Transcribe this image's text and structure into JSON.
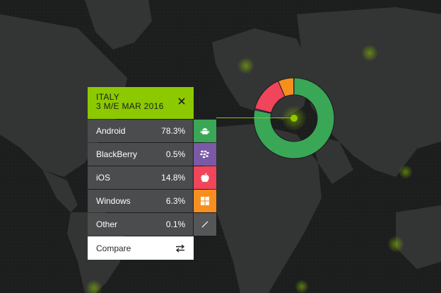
{
  "panel": {
    "country": "ITALY",
    "period": "3 M/E MAR 2016",
    "close_icon": "close-icon",
    "accent_color": "#8cc900"
  },
  "platforms": [
    {
      "name": "Android",
      "share": "78.3%",
      "value": 78.3,
      "icon": "android-icon",
      "color": "#3aa757"
    },
    {
      "name": "BlackBerry",
      "share": "0.5%",
      "value": 0.5,
      "icon": "blackberry-icon",
      "color": "#7a5aa6"
    },
    {
      "name": "iOS",
      "share": "14.8%",
      "value": 14.8,
      "icon": "apple-icon",
      "color": "#f0455a"
    },
    {
      "name": "Windows",
      "share": "6.3%",
      "value": 6.3,
      "icon": "windows-icon",
      "color": "#f78f1e"
    },
    {
      "name": "Other",
      "share": "0.1%",
      "value": 0.1,
      "icon": "other-icon",
      "color": "#555657"
    }
  ],
  "compare": {
    "label": "Compare",
    "icon": "swap-arrows-icon"
  },
  "map": {
    "background_color": "#1c1d1d",
    "land_color": "#333434"
  }
}
